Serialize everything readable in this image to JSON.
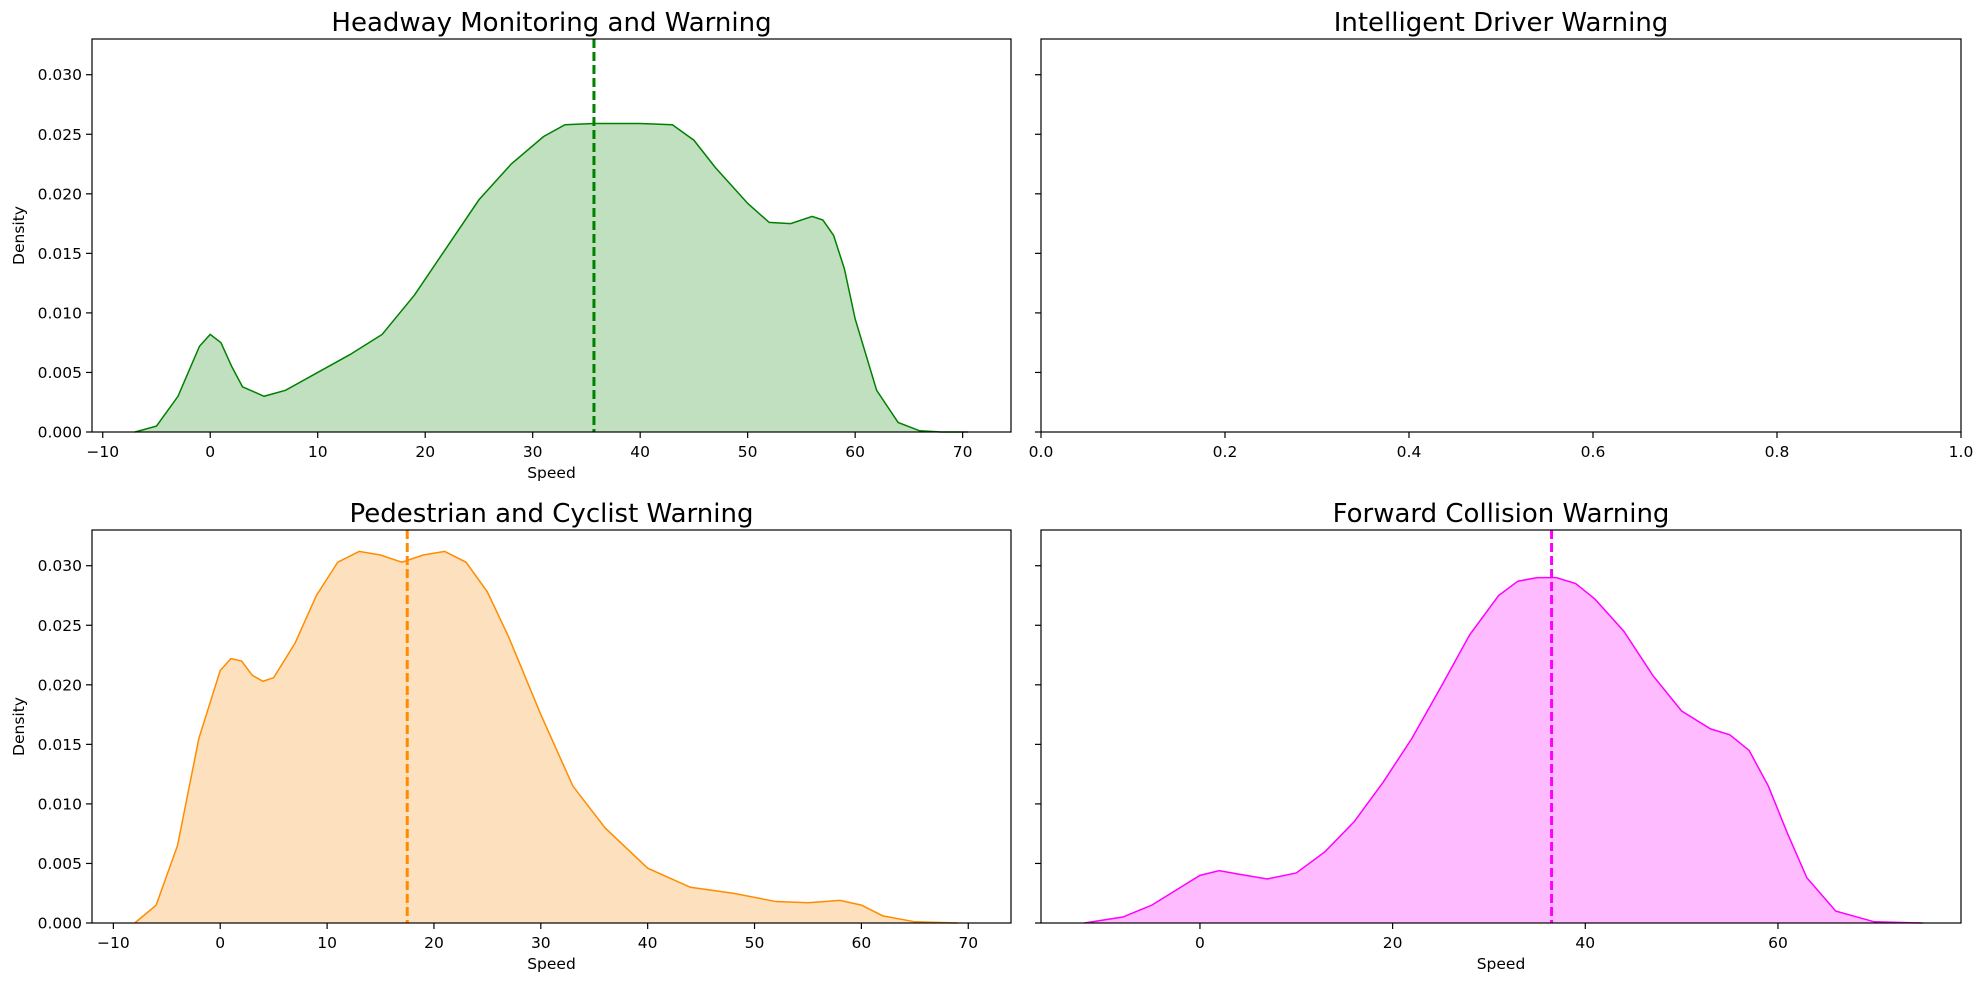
{
  "chart_data": [
    {
      "type": "area",
      "title": "Headway Monitoring and Warning",
      "xlabel": "Speed",
      "ylabel": "Density",
      "xlim": [
        -11,
        74.5
      ],
      "ylim": [
        0,
        0.033
      ],
      "xticks": [
        -10,
        0,
        10,
        20,
        30,
        40,
        50,
        60,
        70
      ],
      "yticks": [
        0.0,
        0.005,
        0.01,
        0.015,
        0.02,
        0.025,
        0.03
      ],
      "ytick_labels": [
        "0.000",
        "0.005",
        "0.010",
        "0.015",
        "0.020",
        "0.025",
        "0.030"
      ],
      "color": "#008000",
      "fill_color": "#c0e0c0",
      "mean_line": 35.7,
      "series": [
        {
          "x": [
            -7,
            -5,
            -3,
            -1,
            0,
            1,
            2,
            3,
            5,
            7,
            10,
            13,
            16,
            19,
            22,
            25,
            28,
            31,
            33,
            35.7,
            38,
            40,
            43,
            45,
            47,
            50,
            52,
            54,
            56,
            57,
            58,
            59,
            60,
            62,
            64,
            66,
            68,
            70.5
          ],
          "y": [
            0.0,
            0.0005,
            0.003,
            0.0072,
            0.0082,
            0.0075,
            0.0055,
            0.0038,
            0.003,
            0.0035,
            0.005,
            0.0065,
            0.0082,
            0.0115,
            0.0155,
            0.0195,
            0.0225,
            0.0248,
            0.0258,
            0.0259,
            0.0259,
            0.0259,
            0.0258,
            0.0245,
            0.0222,
            0.0192,
            0.0176,
            0.0175,
            0.0181,
            0.0178,
            0.0165,
            0.0137,
            0.0095,
            0.0035,
            0.0008,
            0.0001,
            0.0,
            0.0
          ]
        }
      ]
    },
    {
      "type": "area",
      "title": "Intelligent Driver Warning",
      "xlabel": "",
      "ylabel": "",
      "xlim": [
        0.0,
        1.0
      ],
      "ylim": [
        0,
        0.033
      ],
      "xticks": [
        0.0,
        0.2,
        0.4,
        0.6,
        0.8,
        1.0
      ],
      "xtick_labels": [
        "0.0",
        "0.2",
        "0.4",
        "0.6",
        "0.8",
        "1.0"
      ],
      "yticks": [
        0.0,
        0.005,
        0.01,
        0.015,
        0.02,
        0.025,
        0.03
      ],
      "show_ytick_labels": false,
      "series": []
    },
    {
      "type": "area",
      "title": "Pedestrian and Cyclist Warning",
      "xlabel": "Speed",
      "ylabel": "Density",
      "xlim": [
        -12,
        74
      ],
      "ylim": [
        0,
        0.033
      ],
      "xticks": [
        -10,
        0,
        10,
        20,
        30,
        40,
        50,
        60,
        70
      ],
      "yticks": [
        0.0,
        0.005,
        0.01,
        0.015,
        0.02,
        0.025,
        0.03
      ],
      "ytick_labels": [
        "0.000",
        "0.005",
        "0.010",
        "0.015",
        "0.020",
        "0.025",
        "0.030"
      ],
      "color": "#ff8c00",
      "fill_color": "#fde0bd",
      "mean_line": 17.5,
      "series": [
        {
          "x": [
            -8,
            -6,
            -4,
            -2,
            0,
            1,
            2,
            3,
            4,
            5,
            7,
            9,
            11,
            13,
            15,
            17,
            19,
            21,
            23,
            25,
            27,
            30,
            33,
            36,
            40,
            44,
            48,
            52,
            55,
            58,
            60,
            62,
            65,
            69
          ],
          "y": [
            0.0,
            0.0015,
            0.0065,
            0.0155,
            0.0212,
            0.0222,
            0.022,
            0.0208,
            0.0203,
            0.0206,
            0.0235,
            0.0275,
            0.0303,
            0.0312,
            0.0309,
            0.0303,
            0.0309,
            0.0312,
            0.0303,
            0.0278,
            0.024,
            0.0175,
            0.0115,
            0.008,
            0.0046,
            0.003,
            0.0025,
            0.0018,
            0.0017,
            0.0019,
            0.0015,
            0.0006,
            0.0001,
            0.0
          ]
        }
      ]
    },
    {
      "type": "area",
      "title": "Forward Collision Warning",
      "xlabel": "Speed",
      "ylabel": "",
      "xlim": [
        -16.5,
        79
      ],
      "ylim": [
        0,
        0.033
      ],
      "xticks": [
        0,
        20,
        40,
        60
      ],
      "yticks": [
        0.0,
        0.005,
        0.01,
        0.015,
        0.02,
        0.025,
        0.03
      ],
      "show_ytick_labels": false,
      "color": "#ff00ff",
      "fill_color": "#ffbbff",
      "mean_line": 36.5,
      "series": [
        {
          "x": [
            -12,
            -8,
            -5,
            -2,
            0,
            2,
            4,
            7,
            10,
            13,
            16,
            19,
            22,
            25,
            28,
            31,
            33,
            35,
            37,
            39,
            41,
            44,
            47,
            50,
            53,
            55,
            57,
            59,
            61,
            63,
            66,
            70,
            75
          ],
          "y": [
            0.0,
            0.0005,
            0.0015,
            0.003,
            0.004,
            0.0044,
            0.0041,
            0.0037,
            0.0042,
            0.006,
            0.0085,
            0.0118,
            0.0155,
            0.0198,
            0.0242,
            0.0275,
            0.0287,
            0.029,
            0.029,
            0.0285,
            0.0272,
            0.0245,
            0.0208,
            0.0178,
            0.0163,
            0.0158,
            0.0145,
            0.0115,
            0.0075,
            0.0038,
            0.001,
            0.0001,
            0.0
          ]
        }
      ]
    }
  ]
}
